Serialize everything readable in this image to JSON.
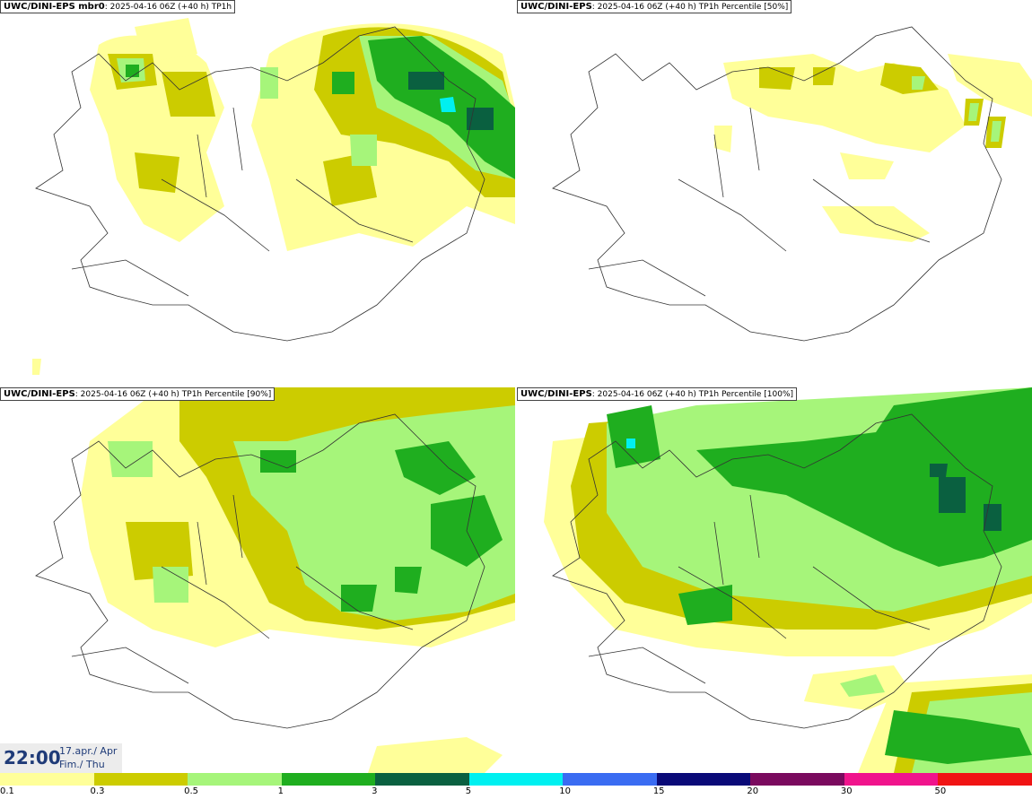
{
  "panels": [
    {
      "model": "UWC/DINI-EPS mbr0",
      "run": "2025-04-16 06Z (+40 h)",
      "field": "TP1h"
    },
    {
      "model": "UWC/DINI-EPS",
      "run": "2025-04-16 06Z (+40 h)",
      "field": "TP1h Percentile [50%]"
    },
    {
      "model": "UWC/DINI-EPS",
      "run": "2025-04-16 06Z (+40 h)",
      "field": "TP1h Percentile [90%]"
    },
    {
      "model": "UWC/DINI-EPS",
      "run": "2025-04-16 06Z (+40 h)",
      "field": "TP1h Percentile [100%]"
    }
  ],
  "valid_time": {
    "clock": "22:00",
    "date_line1": "17.apr./ Apr",
    "date_line2": "Fim./ Thu"
  },
  "legend": {
    "ticks": [
      "0.1",
      "0.3",
      "0.5",
      "1",
      "3",
      "5",
      "10",
      "15",
      "20",
      "30",
      "50"
    ],
    "colors": [
      "#ffff99",
      "#cccc00",
      "#a6f57a",
      "#1fae1f",
      "#0a6040",
      "#00f0f0",
      "#3a6cf2",
      "#0a0a78",
      "#7a0a5e",
      "#f0148c",
      "#f01414"
    ]
  }
}
